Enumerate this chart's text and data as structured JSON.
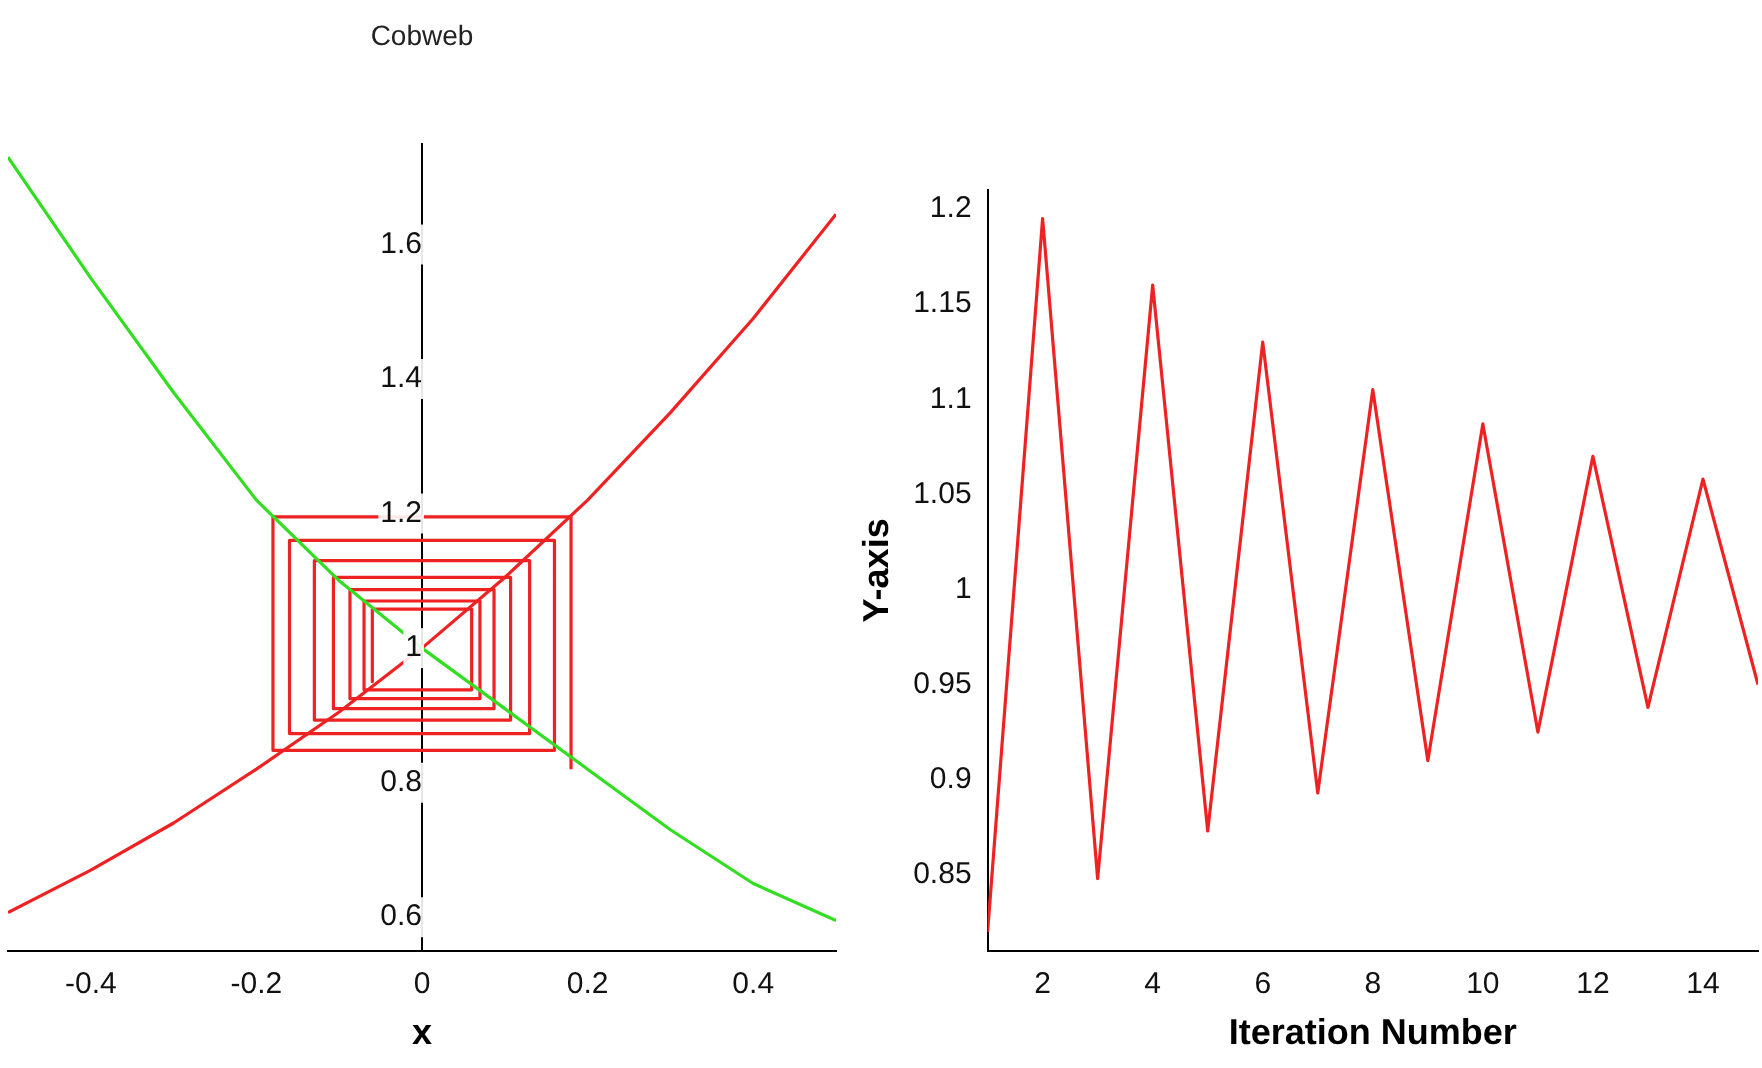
{
  "chart_data": [
    {
      "type": "line",
      "title": "Cobweb",
      "xlabel": "x",
      "xlim": [
        -0.5,
        0.5
      ],
      "xticks": [
        -0.4,
        -0.2,
        0,
        0.2,
        0.4
      ],
      "ylim": [
        0.55,
        1.75
      ],
      "yticks": [
        0.6,
        0.8,
        1,
        1.2,
        1.4,
        1.6
      ],
      "grid": false,
      "legend": false,
      "marker": "none",
      "line_style": "solid",
      "series": [
        {
          "color": "#33dd22",
          "x": [
            -0.5,
            -0.4,
            -0.3,
            -0.2,
            -0.1,
            0,
            0.1,
            0.2,
            0.3,
            0.4,
            0.5
          ],
          "values": [
            1.73,
            1.55,
            1.38,
            1.22,
            1.1,
            1,
            0.91,
            0.82,
            0.73,
            0.65,
            0.595
          ]
        },
        {
          "color": "#ee2222",
          "x": [
            -0.5,
            -0.4,
            -0.3,
            -0.2,
            -0.1,
            0,
            0.1,
            0.2,
            0.3,
            0.4,
            0.5
          ],
          "values": [
            0.607,
            0.67,
            0.74,
            0.82,
            0.905,
            1,
            1.105,
            1.22,
            1.35,
            1.49,
            1.645
          ]
        },
        {
          "color": "#ee2222",
          "x": [
            0.18,
            0.18,
            -0.18,
            -0.18,
            0.16,
            0.16,
            -0.16,
            -0.16,
            0.13,
            0.13,
            -0.13,
            -0.13,
            0.107,
            0.107,
            -0.107,
            -0.107,
            0.087,
            0.087,
            -0.087,
            -0.087,
            0.07,
            0.07,
            -0.07,
            -0.07,
            0.06,
            0.06,
            -0.06,
            -0.06
          ],
          "values": [
            0.82,
            1.195,
            1.195,
            0.848,
            0.848,
            1.16,
            1.16,
            0.873,
            0.873,
            1.13,
            1.13,
            0.893,
            0.893,
            1.105,
            1.105,
            0.91,
            0.91,
            1.087,
            1.087,
            0.925,
            0.925,
            1.07,
            1.07,
            0.938,
            0.938,
            1.058,
            1.058,
            0.95
          ]
        }
      ]
    },
    {
      "type": "line",
      "xlabel": "Iteration Number",
      "ylabel": "Y-axis",
      "xlim": [
        1,
        15
      ],
      "xticks": [
        2,
        4,
        6,
        8,
        10,
        12,
        14
      ],
      "ylim": [
        0.81,
        1.21
      ],
      "yticks": [
        0.85,
        0.9,
        0.95,
        1,
        1.05,
        1.1,
        1.15,
        1.2
      ],
      "grid": false,
      "legend": false,
      "marker": "none",
      "line_style": "solid",
      "series": [
        {
          "color": "#ee2222",
          "x": [
            1,
            2,
            3,
            4,
            5,
            6,
            7,
            8,
            9,
            10,
            11,
            12,
            13,
            14,
            15
          ],
          "values": [
            0.82,
            1.195,
            0.848,
            1.16,
            0.873,
            1.13,
            0.893,
            1.105,
            0.91,
            1.087,
            0.925,
            1.07,
            0.938,
            1.058,
            0.95
          ]
        }
      ]
    }
  ]
}
